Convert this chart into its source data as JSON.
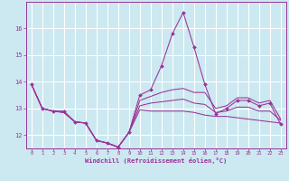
{
  "xlabel": "Windchill (Refroidissement éolien,°C)",
  "background_color": "#cce8f0",
  "line_color": "#993399",
  "grid_color": "#ffffff",
  "x": [
    0,
    1,
    2,
    3,
    4,
    5,
    6,
    7,
    8,
    9,
    10,
    11,
    12,
    13,
    14,
    15,
    16,
    17,
    18,
    19,
    20,
    21,
    22,
    23
  ],
  "y_main": [
    13.9,
    13.0,
    12.9,
    12.9,
    12.5,
    12.45,
    11.8,
    11.7,
    11.55,
    12.1,
    13.5,
    13.7,
    14.6,
    15.8,
    16.6,
    15.3,
    13.9,
    12.8,
    13.0,
    13.3,
    13.3,
    13.1,
    13.2,
    12.4
  ],
  "y_min": [
    13.9,
    13.0,
    12.9,
    12.85,
    12.5,
    12.45,
    11.8,
    11.7,
    11.55,
    12.1,
    12.95,
    12.9,
    12.9,
    12.9,
    12.9,
    12.85,
    12.75,
    12.7,
    12.7,
    12.65,
    12.6,
    12.55,
    12.5,
    12.45
  ],
  "y_max": [
    13.9,
    13.0,
    12.9,
    12.85,
    12.5,
    12.45,
    11.8,
    11.7,
    11.55,
    12.1,
    13.3,
    13.45,
    13.6,
    13.7,
    13.75,
    13.6,
    13.6,
    13.0,
    13.1,
    13.4,
    13.4,
    13.2,
    13.3,
    12.6
  ],
  "y_avg": [
    13.9,
    13.0,
    12.9,
    12.85,
    12.5,
    12.45,
    11.8,
    11.7,
    11.55,
    12.1,
    13.1,
    13.2,
    13.25,
    13.3,
    13.35,
    13.2,
    13.15,
    12.85,
    12.9,
    13.05,
    13.05,
    12.9,
    12.9,
    12.55
  ],
  "ylim": [
    11.5,
    17.0
  ],
  "yticks": [
    12,
    13,
    14,
    15,
    16
  ],
  "xlim": [
    -0.5,
    23.5
  ],
  "xticks": [
    0,
    1,
    2,
    3,
    4,
    5,
    6,
    7,
    8,
    9,
    10,
    11,
    12,
    13,
    14,
    15,
    16,
    17,
    18,
    19,
    20,
    21,
    22,
    23
  ]
}
